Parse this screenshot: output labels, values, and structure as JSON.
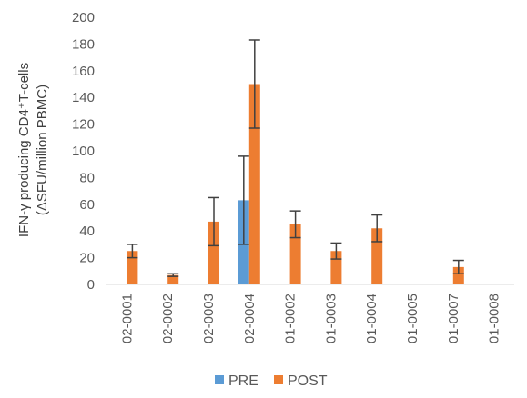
{
  "chart_data": {
    "type": "bar",
    "ylabel_line1": "IFN-γ producing CD4⁺T-cells",
    "ylabel_line2": "(ΔSFU/million PBMC)",
    "ylim": [
      0,
      200
    ],
    "yticks": [
      0,
      20,
      40,
      60,
      80,
      100,
      120,
      140,
      160,
      180,
      200
    ],
    "grid": false,
    "legend_position": "bottom",
    "categories": [
      "02-0001",
      "02-0002",
      "02-0003",
      "02-0004",
      "01-0002",
      "01-0003",
      "01-0004",
      "01-0005",
      "01-0007",
      "01-0008"
    ],
    "series": [
      {
        "name": "PRE",
        "color": "#5B9BD5",
        "values": [
          0,
          0,
          0,
          63,
          0,
          0,
          0,
          0,
          0,
          0
        ],
        "error": [
          0,
          0,
          0,
          33,
          0,
          0,
          0,
          0,
          0,
          0
        ]
      },
      {
        "name": "POST",
        "color": "#ED7D31",
        "values": [
          25,
          7,
          47,
          150,
          45,
          25,
          42,
          0,
          13,
          0
        ],
        "error": [
          5,
          1,
          18,
          33,
          10,
          6,
          10,
          0,
          5,
          0
        ]
      }
    ]
  }
}
